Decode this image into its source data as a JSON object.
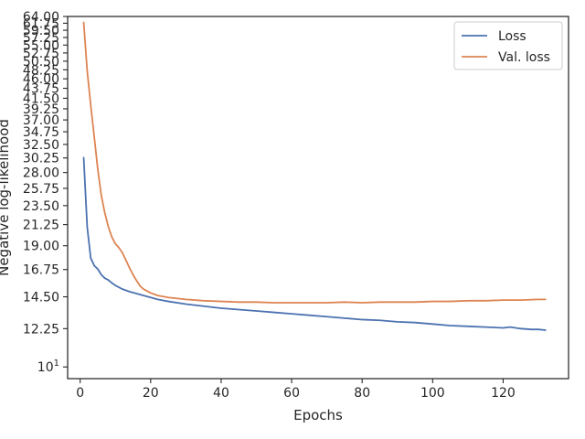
{
  "chart_data": {
    "type": "line",
    "xlabel": "Epochs",
    "ylabel": "Negative log-likelihood",
    "y_scale": "log",
    "xlim": [
      -3.55,
      138.55
    ],
    "ylim": [
      9.4,
      64.0
    ],
    "xticks": [
      0,
      20,
      40,
      60,
      80,
      100,
      120
    ],
    "xtick_labels": [
      "0",
      "20",
      "40",
      "60",
      "80",
      "100",
      "120"
    ],
    "yticks": [
      10,
      12.25,
      14.5,
      16.75,
      19.0,
      21.25,
      23.5,
      25.75,
      28.0,
      30.25,
      32.5,
      34.75,
      37.0,
      39.25,
      41.5,
      43.75,
      46.0,
      48.25,
      50.5,
      52.75,
      55.0,
      57.25,
      59.5,
      61.75,
      64.0
    ],
    "ytick_labels": [
      "10¹",
      "12.25",
      "14.50",
      "16.75",
      "19.00",
      "21.25",
      "23.50",
      "25.75",
      "28.00",
      "30.25",
      "32.50",
      "34.75",
      "37.00",
      "39.25",
      "41.50",
      "43.75",
      "46.00",
      "48.25",
      "50.50",
      "52.75",
      "55.00",
      "57.25",
      "59.50",
      "61.75",
      "64.00"
    ],
    "legend": "upper right",
    "grid": false,
    "series": [
      {
        "name": "Loss",
        "color": "#4c72b0",
        "x": [
          1,
          2,
          3,
          4,
          5,
          6,
          7,
          8,
          9,
          10,
          12,
          14,
          16,
          18,
          20,
          22,
          25,
          30,
          35,
          40,
          45,
          50,
          55,
          60,
          65,
          70,
          75,
          80,
          85,
          90,
          95,
          100,
          105,
          110,
          115,
          120,
          122,
          125,
          128,
          130,
          132
        ],
        "y": [
          30.3,
          21.0,
          17.8,
          17.1,
          16.8,
          16.3,
          16.0,
          15.85,
          15.6,
          15.4,
          15.1,
          14.9,
          14.75,
          14.6,
          14.45,
          14.3,
          14.15,
          13.95,
          13.8,
          13.65,
          13.55,
          13.45,
          13.35,
          13.25,
          13.15,
          13.05,
          12.95,
          12.85,
          12.8,
          12.7,
          12.65,
          12.55,
          12.45,
          12.4,
          12.35,
          12.3,
          12.35,
          12.25,
          12.2,
          12.2,
          12.15
        ]
      },
      {
        "name": "Val. loss",
        "color": "#dd8452",
        "x": [
          1,
          2,
          3,
          4,
          5,
          6,
          7,
          8,
          9,
          10,
          11,
          12,
          13,
          14,
          15,
          16,
          17,
          18,
          20,
          22,
          25,
          30,
          35,
          40,
          45,
          50,
          55,
          60,
          65,
          70,
          75,
          80,
          85,
          90,
          95,
          100,
          105,
          110,
          115,
          120,
          125,
          130,
          132
        ],
        "y": [
          62.0,
          48.0,
          40.0,
          33.8,
          28.5,
          24.8,
          22.6,
          21.0,
          19.9,
          19.2,
          18.8,
          18.3,
          17.6,
          16.9,
          16.3,
          15.8,
          15.35,
          15.1,
          14.8,
          14.6,
          14.45,
          14.3,
          14.2,
          14.15,
          14.1,
          14.1,
          14.05,
          14.05,
          14.05,
          14.05,
          14.1,
          14.05,
          14.1,
          14.1,
          14.1,
          14.15,
          14.15,
          14.2,
          14.2,
          14.25,
          14.25,
          14.3,
          14.3
        ]
      }
    ]
  }
}
